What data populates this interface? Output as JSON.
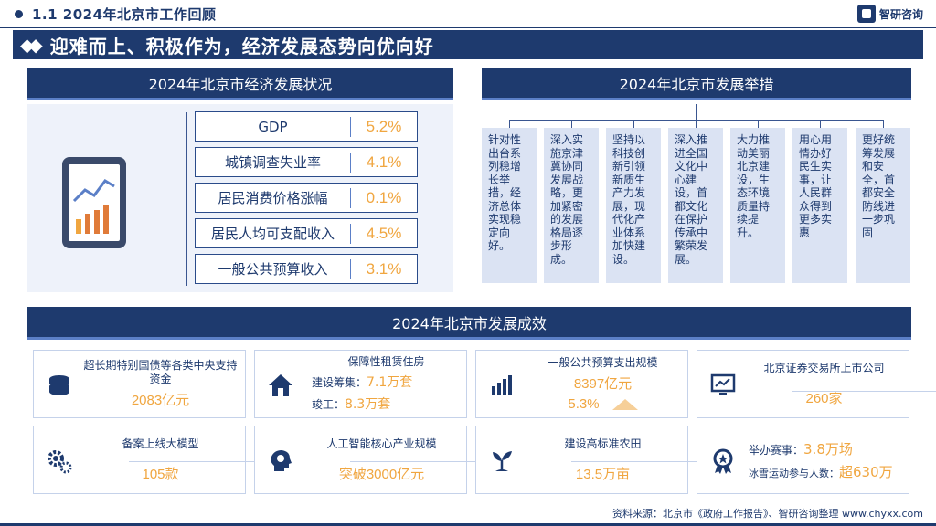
{
  "header": {
    "title": "1.1  2024年北京市工作回顾",
    "logo": "智研咨询"
  },
  "banner": {
    "title": "迎难而上、积极作为，经济发展态势向优向好"
  },
  "economy": {
    "title": "2024年北京市经济发展状况",
    "rows": [
      {
        "label": "GDP",
        "value": "5.2%"
      },
      {
        "label": "城镇调查失业率",
        "value": "4.1%"
      },
      {
        "label": "居民消费价格涨幅",
        "value": "0.1%"
      },
      {
        "label": "居民人均可支配收入",
        "value": "4.5%"
      },
      {
        "label": "一般公共预算收入",
        "value": "3.1%"
      }
    ]
  },
  "measures": {
    "title": "2024年北京市发展举措",
    "items": [
      "针对性出台系列稳增长举措，经济总体实现稳定向好。",
      "深入实施京津冀协同发展战略，更加紧密的发展格局逐步形成。",
      "坚持以科技创新引领新质生产力发展，现代化产业体系加快建设。",
      "深入推进全国文化中心建设，首都文化在保护传承中繁荣发展。",
      "大力推动美丽北京建设，生态环境质量持续提升。",
      "用心用情办好民生实事，让人民群众得到更多实惠",
      "更好统筹发展和安全，首都安全防线进一步巩固"
    ]
  },
  "results": {
    "title": "2024年北京市发展成效",
    "cards": [
      {
        "icon": "coins-icon",
        "title": "超长期特别国债等各类中央支持资金",
        "value": "2083亿元"
      },
      {
        "icon": "house-icon",
        "title": "保障性租赁住房",
        "sub1_label": "建设筹集：",
        "sub1_value": "7.1万套",
        "sub2_label": "竣工：",
        "sub2_value": "8.3万套"
      },
      {
        "icon": "bar-chart-icon",
        "title": "一般公共预算支出规模",
        "value": "8397亿元",
        "value2": "5.3%"
      },
      {
        "icon": "monitor-chart-icon",
        "title": "北京证券交易所上市公司",
        "value": "260家"
      },
      {
        "icon": "gears-icon",
        "title": "备案上线大模型",
        "value": "105款"
      },
      {
        "icon": "ai-head-icon",
        "title": "人工智能核心产业规模",
        "value": "突破3000亿元"
      },
      {
        "icon": "sprout-icon",
        "title": "建设高标准农田",
        "value": "13.5万亩"
      },
      {
        "icon": "medal-icon",
        "sub1_label": "举办赛事：",
        "sub1_value": "3.8万场",
        "sub2_label": "冰雪运动参与人数：",
        "sub2_value": "超630万"
      }
    ]
  },
  "footer": {
    "source": "资料来源：北京市《政府工作报告》、智研咨询整理    www.chyxx.com"
  }
}
